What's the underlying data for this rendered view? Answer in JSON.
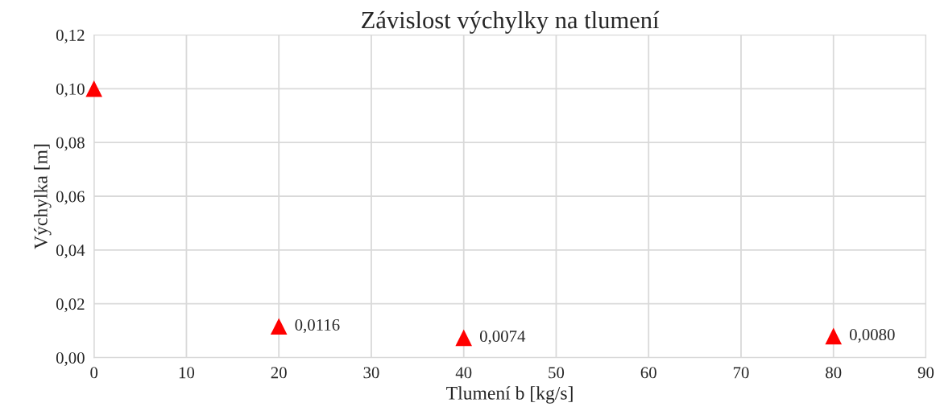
{
  "chart_data": {
    "type": "scatter",
    "title": "Závislost výchylky na tlumení",
    "xlabel": "Tlumení b [kg/s]",
    "ylabel": "Výchylka [m]",
    "x": [
      0,
      20,
      40,
      80
    ],
    "series": [
      {
        "color": "#ff0000",
        "values": [
          0.1,
          0.0116,
          0.0074,
          0.008
        ],
        "value_labels": [
          null,
          "0,0116",
          "0,0074",
          "0,0080"
        ]
      }
    ],
    "marker": "triangle",
    "grid": true,
    "legend": false,
    "xlim": [
      0,
      90
    ],
    "xticks": [
      0,
      10,
      20,
      30,
      40,
      50,
      60,
      70,
      80,
      90
    ],
    "ylim": [
      0,
      0.12
    ],
    "yticks": [
      {
        "value": 0,
        "label": "0,00"
      },
      {
        "value": 0.02,
        "label": "0,02"
      },
      {
        "value": 0.04,
        "label": "0,04"
      },
      {
        "value": 0.06,
        "label": "0,06"
      },
      {
        "value": 0.08,
        "label": "0,08"
      },
      {
        "value": 0.1,
        "label": "0,10"
      },
      {
        "value": 0.12,
        "label": "0,12"
      }
    ]
  }
}
